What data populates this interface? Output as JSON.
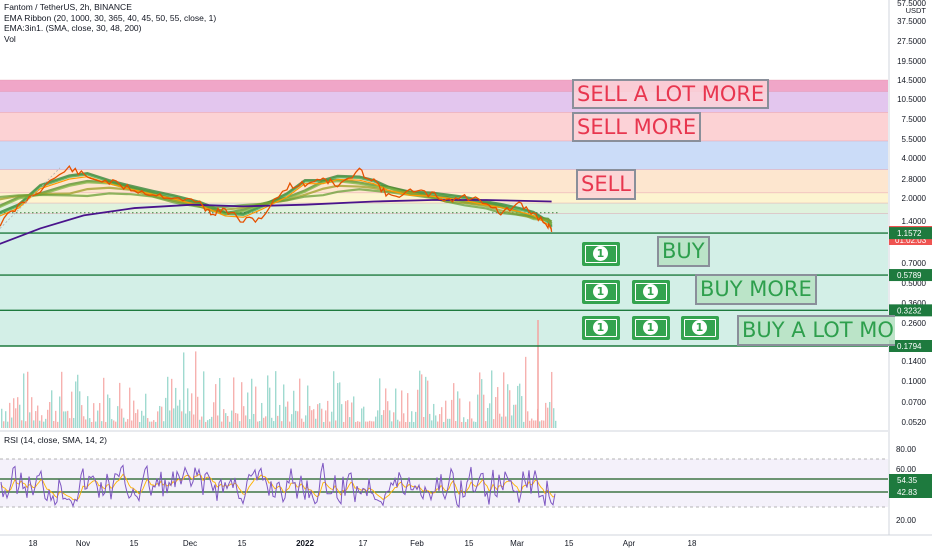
{
  "legend": {
    "title": "Fantom / TetherUS, 2h, BINANCE",
    "ind1": "EMA Ribbon (20, 1000, 30, 365, 40, 45, 50, 55, close, 1)",
    "ind2": "EMA:3in1. (SMA, close, 30, 48, 200)",
    "ind3": "Vol"
  },
  "rsi_label": "RSI (14, close, SMA, 14, 2)",
  "currency": "USDT",
  "annotations": {
    "sell_a_lot_more": "SELL A LOT MORE",
    "sell_more": "SELL MORE",
    "sell": "SELL",
    "buy": "BUY",
    "buy_more": "BUY MORE",
    "buy_a_lot_more": "BUY A LOT MO"
  },
  "bill_glyph": "1",
  "bill_icon": "dollar-bill-icon",
  "colors": {
    "sell_text": "#e8364f",
    "buy_text": "#2e9f4d",
    "candle_up": "#26a69a",
    "candle_down": "#ef5350",
    "price_tag": "#ef5350",
    "level_tag": "#1e7a3e",
    "rsi_line": "#7e57c2",
    "ma_purple": "#4a148c"
  },
  "chart_data": {
    "type": "line",
    "price_axis_ticks": [
      "57.5000",
      "37.5000",
      "27.5000",
      "19.5000",
      "14.5000",
      "10.5000",
      "7.5000",
      "5.5000",
      "4.0000",
      "2.8000",
      "2.0000",
      "1.4000",
      "0.7000",
      "0.5000",
      "0.3600",
      "0.2600",
      "0.1400",
      "0.1000",
      "0.0700",
      "0.0520"
    ],
    "time_axis_ticks": [
      "18",
      "Nov",
      "15",
      "Dec",
      "15",
      "2022",
      "17",
      "Feb",
      "15",
      "Mar",
      "15",
      "Apr",
      "18"
    ],
    "rsi_axis_ticks": [
      "80.00",
      "60.00",
      "20.00"
    ],
    "current_price": "1.1825",
    "countdown": "01:02:03",
    "support_levels": [
      "1.1572",
      "0.5789",
      "0.3232",
      "0.1794"
    ],
    "rsi_levels": [
      "54.35",
      "42.83"
    ],
    "zones": [
      {
        "from": 14.5,
        "to": 12.0,
        "color": "#f0a6c8"
      },
      {
        "from": 12.0,
        "to": 8.5,
        "color": "#e3c6ee"
      },
      {
        "from": 8.5,
        "to": 5.3,
        "color": "#fcd2d4"
      },
      {
        "from": 5.3,
        "to": 3.3,
        "color": "#cbdcf8"
      },
      {
        "from": 3.3,
        "to": 2.25,
        "color": "#fde6cf"
      },
      {
        "from": 2.25,
        "to": 1.9,
        "color": "#fdf4d0"
      },
      {
        "from": 1.9,
        "to": 1.6,
        "color": "#dff2dd"
      },
      {
        "from": 1.6,
        "to": 1.1572,
        "color": "#d8f0ea"
      },
      {
        "from": 1.1572,
        "to": 0.1794,
        "color": "#d3efe7"
      }
    ],
    "price_path": [
      {
        "date": "2021-10-08",
        "price": 1.3
      },
      {
        "date": "2021-10-14",
        "price": 1.8
      },
      {
        "date": "2021-10-20",
        "price": 2.4
      },
      {
        "date": "2021-10-28",
        "price": 3.4
      },
      {
        "date": "2021-11-02",
        "price": 2.9
      },
      {
        "date": "2021-11-08",
        "price": 2.7
      },
      {
        "date": "2021-11-14",
        "price": 2.4
      },
      {
        "date": "2021-11-20",
        "price": 2.2
      },
      {
        "date": "2021-11-26",
        "price": 2.1
      },
      {
        "date": "2021-12-03",
        "price": 1.9
      },
      {
        "date": "2021-12-06",
        "price": 1.6
      },
      {
        "date": "2021-12-10",
        "price": 1.7
      },
      {
        "date": "2021-12-15",
        "price": 1.4
      },
      {
        "date": "2021-12-20",
        "price": 1.5
      },
      {
        "date": "2021-12-27",
        "price": 2.5
      },
      {
        "date": "2022-01-01",
        "price": 2.6
      },
      {
        "date": "2022-01-06",
        "price": 2.9
      },
      {
        "date": "2022-01-10",
        "price": 2.5
      },
      {
        "date": "2022-01-16",
        "price": 3.2
      },
      {
        "date": "2022-01-20",
        "price": 2.8
      },
      {
        "date": "2022-01-24",
        "price": 2.1
      },
      {
        "date": "2022-01-30",
        "price": 2.3
      },
      {
        "date": "2022-02-05",
        "price": 2.2
      },
      {
        "date": "2022-02-09",
        "price": 2.0
      },
      {
        "date": "2022-02-14",
        "price": 2.1
      },
      {
        "date": "2022-02-20",
        "price": 1.95
      },
      {
        "date": "2022-02-24",
        "price": 1.6
      },
      {
        "date": "2022-03-01",
        "price": 1.85
      },
      {
        "date": "2022-03-05",
        "price": 1.6
      },
      {
        "date": "2022-03-09",
        "price": 1.32
      },
      {
        "date": "2022-03-10",
        "price": 1.18
      }
    ],
    "ma_long": [
      {
        "date": "2021-10-08",
        "price": 0.95
      },
      {
        "date": "2021-10-20",
        "price": 1.25
      },
      {
        "date": "2021-11-01",
        "price": 1.55
      },
      {
        "date": "2021-11-15",
        "price": 1.75
      },
      {
        "date": "2021-12-01",
        "price": 1.85
      },
      {
        "date": "2021-12-15",
        "price": 1.8
      },
      {
        "date": "2022-01-01",
        "price": 1.85
      },
      {
        "date": "2022-01-20",
        "price": 1.95
      },
      {
        "date": "2022-02-05",
        "price": 2.0
      },
      {
        "date": "2022-02-20",
        "price": 2.0
      },
      {
        "date": "2022-03-10",
        "price": 1.95
      }
    ]
  }
}
